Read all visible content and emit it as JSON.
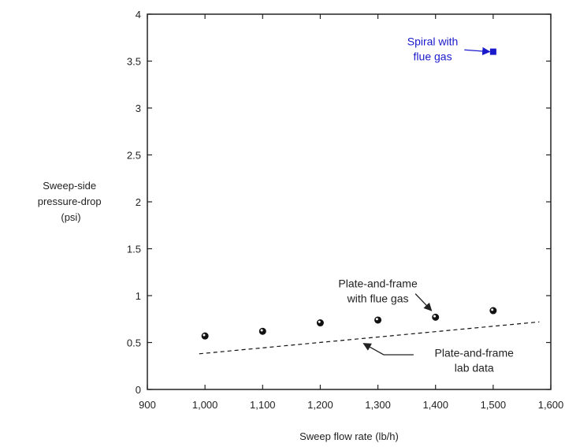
{
  "chart_data": {
    "type": "scatter",
    "title": "",
    "xlabel": "Sweep flow rate (lb/h)",
    "ylabel": [
      "Sweep-side",
      "pressure-drop",
      "(psi)"
    ],
    "xlim": [
      900,
      1600
    ],
    "ylim": [
      0,
      4
    ],
    "x_ticks": [
      900,
      1000,
      1100,
      1200,
      1300,
      1400,
      1500,
      1600
    ],
    "x_tick_labels": [
      "900",
      "1,000",
      "1,100",
      "1,200",
      "1,300",
      "1,400",
      "1,500",
      "1,600"
    ],
    "y_ticks": [
      0,
      0.5,
      1,
      1.5,
      2,
      2.5,
      3,
      3.5,
      4
    ],
    "y_tick_labels": [
      "0",
      "0.5",
      "1",
      "1.5",
      "2",
      "2.5",
      "3",
      "3.5",
      "4"
    ],
    "grid": false,
    "series": [
      {
        "kind": "points",
        "marker": "circle",
        "color": "#111111",
        "x": [
          1000,
          1100,
          1200,
          1300,
          1400,
          1500
        ],
        "y": [
          0.57,
          0.62,
          0.71,
          0.74,
          0.77,
          0.84
        ]
      },
      {
        "kind": "dashed-line",
        "color": "#111111",
        "x": [
          990,
          1580
        ],
        "y": [
          0.38,
          0.72
        ]
      },
      {
        "kind": "points",
        "marker": "square",
        "color": "#1a1acc",
        "x": [
          1500
        ],
        "y": [
          3.6
        ]
      }
    ],
    "annotations": [
      {
        "lines": [
          "Spiral with",
          "flue gas"
        ],
        "color": "#1a1acc",
        "text_at": [
          1395,
          3.67
        ],
        "line_step": 0.16,
        "arrow_from": [
          1450,
          3.62
        ],
        "arrow_to": [
          1494,
          3.6
        ]
      },
      {
        "lines": [
          "Plate-and-frame",
          "with flue gas"
        ],
        "color": "#222222",
        "text_at": [
          1300,
          1.09
        ],
        "line_step": 0.16,
        "arrow_from": [
          1365,
          1.02
        ],
        "arrow_to": [
          1393,
          0.84
        ]
      },
      {
        "lines": [
          "Plate-and-frame",
          "lab data"
        ],
        "color": "#222222",
        "text_at": [
          1467,
          0.35
        ],
        "line_step": 0.16,
        "arrow_from": [
          1362,
          0.37
        ],
        "arrow_to": [
          1275,
          0.49
        ],
        "via": [
          1310,
          0.37
        ]
      }
    ]
  }
}
